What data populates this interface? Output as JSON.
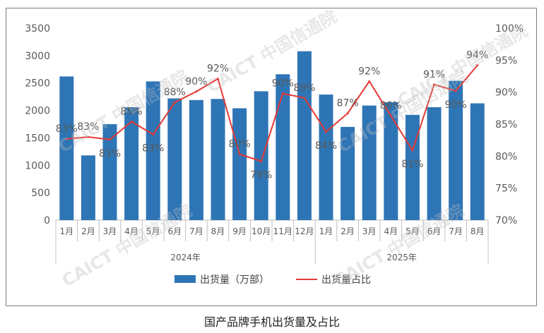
{
  "caption": "国产品牌手机出货量及占比",
  "watermark": "CAICT 中国信通院",
  "chart_data": {
    "type": "bar",
    "categories": [
      "1月",
      "2月",
      "3月",
      "4月",
      "5月",
      "6月",
      "7月",
      "8月",
      "9月",
      "10月",
      "11月",
      "12月",
      "1月",
      "2月",
      "3月",
      "4月",
      "5月",
      "6月",
      "7月",
      "8月"
    ],
    "groups": [
      {
        "label": "2024年",
        "count": 12
      },
      {
        "label": "2025年",
        "count": 8
      }
    ],
    "series": [
      {
        "name": "出货量（万部）",
        "type": "bar",
        "axis": "left",
        "color": "#2e75b6",
        "values": [
          2620,
          1180,
          1750,
          2060,
          2530,
          2220,
          2190,
          2210,
          2040,
          2350,
          2660,
          3080,
          2290,
          1700,
          2090,
          2150,
          1920,
          2060,
          2540,
          2130
        ]
      },
      {
        "name": "出货量占比",
        "type": "line",
        "axis": "right",
        "color": "#e53935",
        "values": [
          82.7,
          83.0,
          82.6,
          85.4,
          83.4,
          88.4,
          90.1,
          92.1,
          80.3,
          79.2,
          89.8,
          89.1,
          83.8,
          86.7,
          91.7,
          86.3,
          80.9,
          91.2,
          90.2,
          94.2
        ],
        "labels": [
          "83%",
          "83%",
          "83%",
          "85%",
          "83%",
          "88%",
          "90%",
          "92%",
          "80%",
          "79%",
          "90%",
          "89%",
          "84%",
          "87%",
          "92%",
          "86%",
          "81%",
          "91%",
          "90%",
          "94%"
        ]
      }
    ],
    "y_left": {
      "min": 0,
      "max": 3500,
      "step": 500,
      "ticks": [
        "0",
        "500",
        "1000",
        "1500",
        "2000",
        "2500",
        "3000",
        "3500"
      ]
    },
    "y_right": {
      "min": 70,
      "max": 100,
      "step": 5,
      "ticks": [
        "70%",
        "75%",
        "80%",
        "85%",
        "90%",
        "95%",
        "100%"
      ]
    },
    "legend_position": "bottom"
  }
}
